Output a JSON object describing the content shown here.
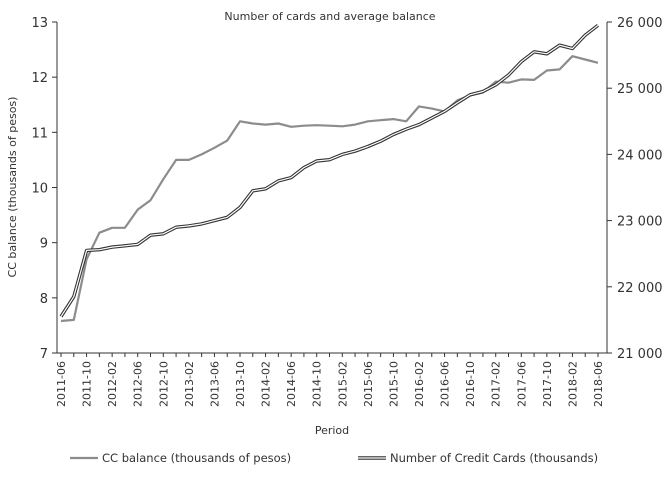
{
  "chart_data": {
    "type": "line",
    "title": "Number of cards and average balance",
    "xlabel": "Period",
    "ylabel": "CC balance (thousands of pesos)",
    "y2label": "",
    "ylim": [
      7,
      13
    ],
    "y2lim": [
      21000,
      26000
    ],
    "yticks": [
      "7",
      "8",
      "9",
      "10",
      "11",
      "12",
      "13"
    ],
    "y2ticks": [
      "21 000",
      "22 000",
      "23 000",
      "24 000",
      "25 000",
      "26 000"
    ],
    "grid": false,
    "legend_position": "bottom",
    "x": [
      "2011-06",
      "2011-08",
      "2011-10",
      "2011-12",
      "2012-02",
      "2012-04",
      "2012-06",
      "2012-08",
      "2012-10",
      "2012-12",
      "2013-02",
      "2013-04",
      "2013-06",
      "2013-08",
      "2013-10",
      "2013-12",
      "2014-02",
      "2014-04",
      "2014-06",
      "2014-08",
      "2014-10",
      "2014-12",
      "2015-02",
      "2015-04",
      "2015-06",
      "2015-08",
      "2015-10",
      "2015-12",
      "2016-02",
      "2016-04",
      "2016-06",
      "2016-08",
      "2016-10",
      "2016-12",
      "2017-02",
      "2017-04",
      "2017-06",
      "2017-08",
      "2017-10",
      "2017-12",
      "2018-02",
      "2018-04",
      "2018-06"
    ],
    "xtick_labels": [
      "2011-06",
      "2011-10",
      "2012-02",
      "2012-06",
      "2012-10",
      "2013-02",
      "2013-06",
      "2013-10",
      "2014-02",
      "2014-06",
      "2014-10",
      "2015-02",
      "2015-06",
      "2015-10",
      "2016-02",
      "2016-06",
      "2016-10",
      "2017-02",
      "2017-06",
      "2017-10",
      "2018-02",
      "2018-06"
    ],
    "series": [
      {
        "name": "CC balance (thousands of pesos)",
        "axis": "left",
        "color": "#8c8c8c",
        "style": "solid",
        "values": [
          7.58,
          7.6,
          8.7,
          9.18,
          9.27,
          9.27,
          9.6,
          9.77,
          10.15,
          10.5,
          10.5,
          10.6,
          10.72,
          10.85,
          11.2,
          11.16,
          11.14,
          11.16,
          11.1,
          11.12,
          11.13,
          11.12,
          11.11,
          11.14,
          11.2,
          11.22,
          11.24,
          11.2,
          11.47,
          11.43,
          11.38,
          11.58,
          11.67,
          11.72,
          11.92,
          11.9,
          11.96,
          11.95,
          12.12,
          12.14,
          12.38,
          12.32,
          12.26
        ]
      },
      {
        "name": "Number of Credit Cards (thousands)",
        "axis": "right",
        "color": "#333333",
        "style": "double",
        "values": [
          21550,
          21850,
          22550,
          22560,
          22600,
          22620,
          22640,
          22780,
          22800,
          22900,
          22920,
          22950,
          23000,
          23050,
          23200,
          23450,
          23480,
          23600,
          23650,
          23800,
          23900,
          23920,
          24000,
          24050,
          24120,
          24200,
          24300,
          24380,
          24450,
          24550,
          24650,
          24780,
          24900,
          24950,
          25050,
          25200,
          25400,
          25550,
          25520,
          25650,
          25600,
          25800,
          25950
        ]
      }
    ]
  }
}
